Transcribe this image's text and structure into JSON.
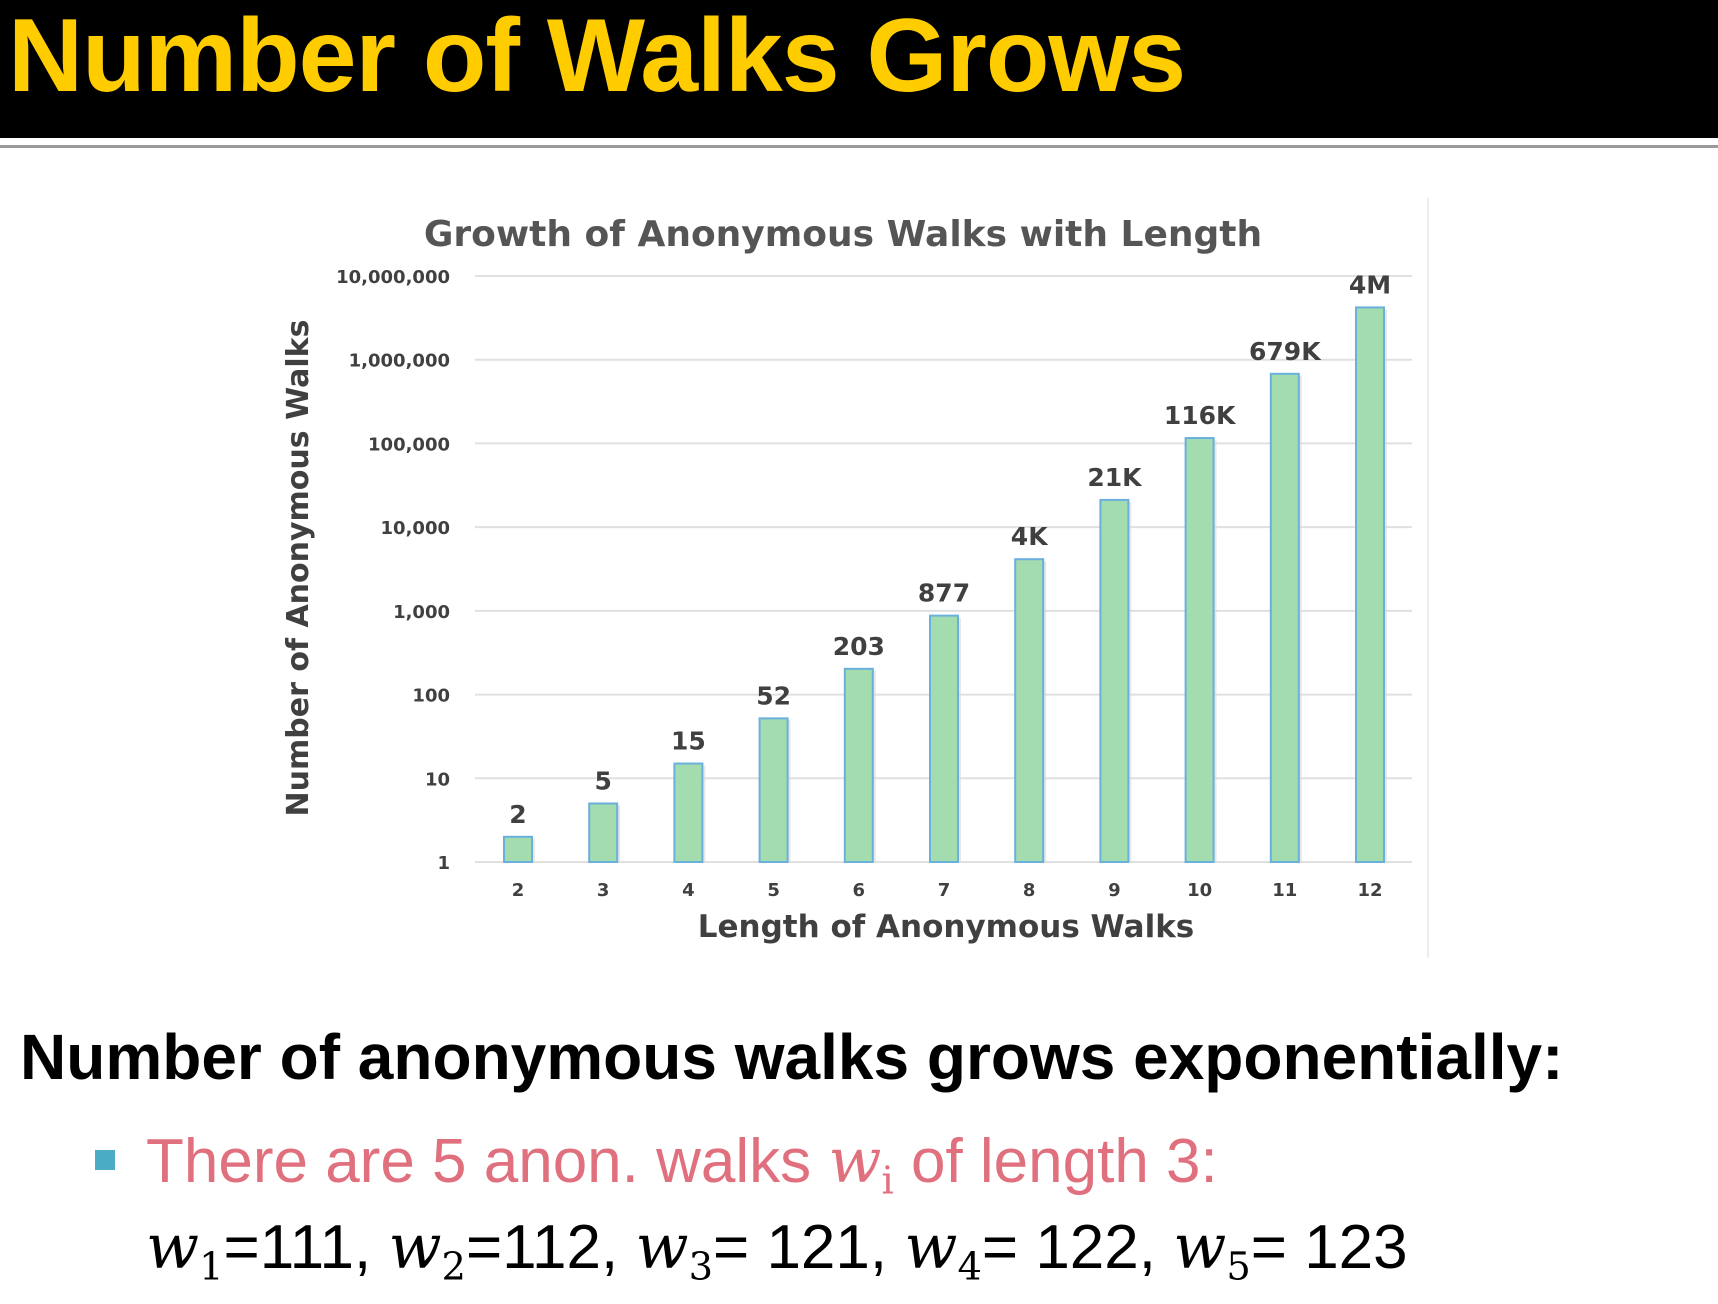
{
  "slide": {
    "title": "Number of Walks Grows",
    "headline": "Number of anonymous walks grows exponentially:",
    "bullet": {
      "text_before": "There are 5 anon. walks ",
      "var": "w",
      "var_sub": "i",
      "text_after": " of length 3:"
    },
    "walks": [
      {
        "var": "w",
        "sub": "1",
        "value": "=111",
        "sep": ", "
      },
      {
        "var": "w",
        "sub": "2",
        "value": "=112",
        "sep": ", "
      },
      {
        "var": "w",
        "sub": "3",
        "value": "= 121",
        "sep": ", "
      },
      {
        "var": "w",
        "sub": "4",
        "value": "= 122",
        "sep": ", "
      },
      {
        "var": "w",
        "sub": "5",
        "value": "= 123",
        "sep": ""
      }
    ]
  },
  "colors": {
    "title": "#ffcc00",
    "title_bar": "#000000",
    "bullet_text": "#e0707e",
    "bullet_square": "#4bacc6",
    "bar_fill": "#a3dcae",
    "bar_edge": "#6ab0dd",
    "chart_text": "#404040",
    "grid": "#e0e0e0"
  },
  "chart_data": {
    "type": "bar",
    "title": "Growth of Anonymous Walks with Length",
    "xlabel": "Length of Anonymous Walks",
    "ylabel": "Number of Anonymous Walks",
    "yscale": "log",
    "ylim": [
      1,
      10000000
    ],
    "yticks": [
      1,
      10,
      100,
      1000,
      10000,
      100000,
      1000000,
      10000000
    ],
    "ytick_labels": [
      "1",
      "10",
      "100",
      "1,000",
      "10,000",
      "100,000",
      "1,000,000",
      "10,000,000"
    ],
    "categories": [
      "2",
      "3",
      "4",
      "5",
      "6",
      "7",
      "8",
      "9",
      "10",
      "11",
      "12"
    ],
    "values": [
      2,
      5,
      15,
      52,
      203,
      877,
      4140,
      21147,
      115975,
      678570,
      4213597
    ],
    "data_labels": [
      "2",
      "5",
      "15",
      "52",
      "203",
      "877",
      "4K",
      "21K",
      "116K",
      "679K",
      "4M"
    ],
    "grid": true,
    "legend": "none"
  }
}
